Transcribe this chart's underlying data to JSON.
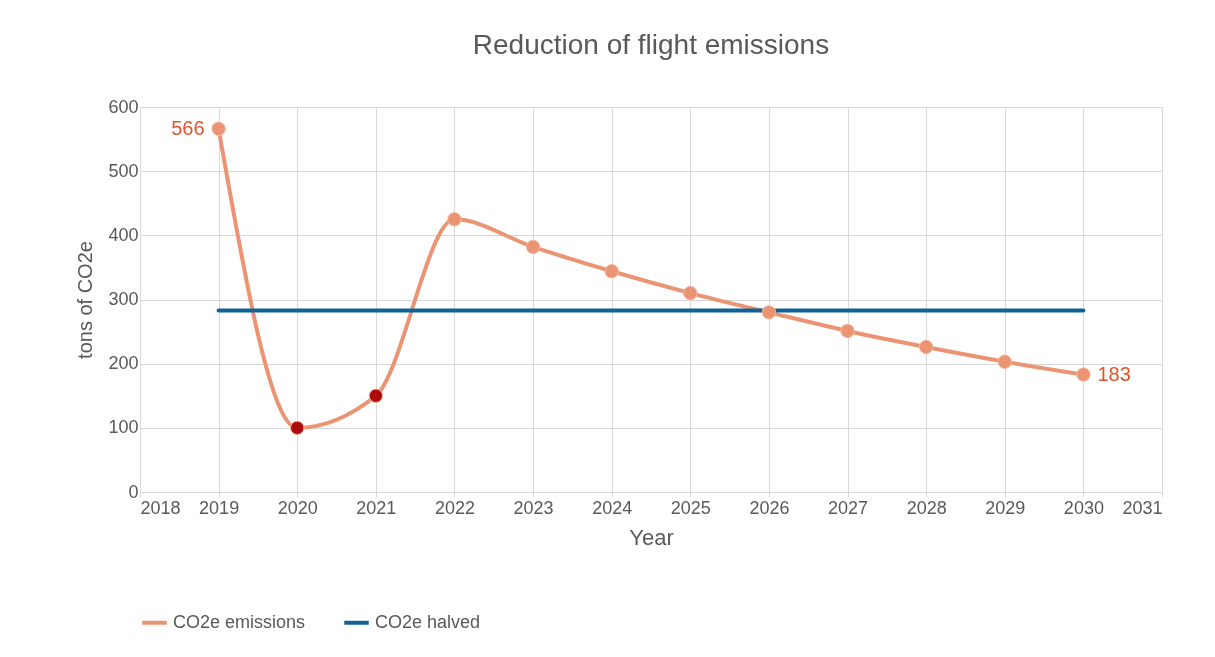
{
  "chart_data": {
    "type": "line",
    "title": "Reduction of flight emissions",
    "xlabel": "Year",
    "ylabel": "tons of CO2e",
    "x": [
      2019,
      2020,
      2021,
      2022,
      2023,
      2024,
      2025,
      2026,
      2027,
      2028,
      2029,
      2030
    ],
    "series": [
      {
        "name": "CO2e emissions",
        "color": "#eb9474",
        "values": [
          566,
          100,
          150,
          425,
          382,
          344,
          310,
          280,
          251,
          226,
          203,
          183
        ],
        "colors": [
          "#eb9474",
          "#ad0b0b",
          "#ad0b0b",
          "#eb9474",
          "#eb9474",
          "#eb9474",
          "#eb9474",
          "#eb9474",
          "#eb9474",
          "#eb9474",
          "#eb9474",
          "#eb9474"
        ],
        "marker": "circle",
        "value_labels": [
          "566",
          null,
          null,
          null,
          null,
          null,
          null,
          null,
          null,
          null,
          null,
          "183"
        ]
      },
      {
        "name": "CO2e halved",
        "color": "#0f6296",
        "values": [
          283,
          283,
          283,
          283,
          283,
          283,
          283,
          283,
          283,
          283,
          283,
          283
        ],
        "marker": "none"
      }
    ],
    "xlim": [
      2018,
      2031
    ],
    "xticks": [
      2018,
      2019,
      2020,
      2021,
      2022,
      2023,
      2024,
      2025,
      2026,
      2027,
      2028,
      2029,
      2030,
      2031
    ],
    "ylim": [
      0,
      600
    ],
    "yticks": [
      0,
      100,
      200,
      300,
      400,
      500,
      600
    ],
    "grid": true,
    "legend": "bottom",
    "line_style": "solid"
  }
}
